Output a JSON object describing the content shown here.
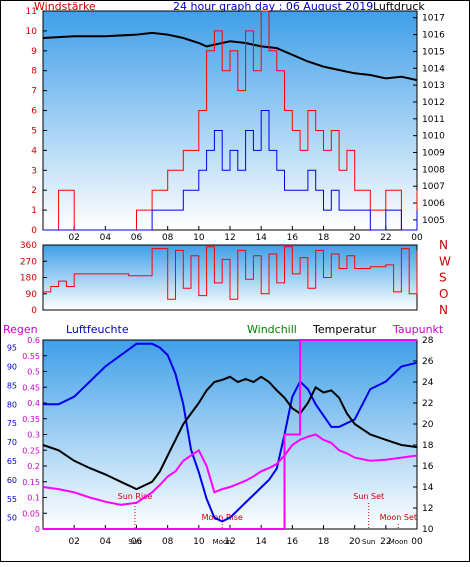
{
  "header": {
    "title": "24 hour graph day : 06 August 2019",
    "left_label": "Windstärke",
    "right_label": "Luftdruck"
  },
  "colors": {
    "red": "#ff0000",
    "blue": "#0000ee",
    "black": "#000000",
    "magenta": "#ff00ff",
    "green": "#008000",
    "panel_top": "#3f9fe8",
    "panel_bottom": "#ffffff",
    "label_red": "#cc0000",
    "label_blue": "#0000cc"
  },
  "chart_data": [
    {
      "type": "line",
      "name": "wind-pressure",
      "x_ticks": [
        "02",
        "04",
        "06",
        "08",
        "10",
        "12",
        "14",
        "16",
        "18",
        "20",
        "22",
        "00"
      ],
      "y_left": {
        "label": "Windstärke",
        "range": [
          0,
          11
        ],
        "ticks": [
          "0",
          "1",
          "2",
          "3",
          "4",
          "5",
          "6",
          "7",
          "8",
          "9",
          "10",
          "11"
        ]
      },
      "y_right": {
        "label": "Luftdruck",
        "range": [
          1004.4,
          1017.4
        ],
        "ticks": [
          "1005",
          "1006",
          "1007",
          "1008",
          "1009",
          "1010",
          "1011",
          "1012",
          "1013",
          "1014",
          "1015",
          "1016",
          "1017"
        ]
      },
      "series": [
        {
          "role": "pressure",
          "color": "#000000",
          "x": [
            0,
            2,
            4,
            6,
            7,
            8,
            9,
            10,
            10.5,
            11,
            12,
            13,
            14,
            15,
            16,
            17,
            18,
            19,
            20,
            21,
            22,
            23,
            24
          ],
          "y": [
            1015.8,
            1015.9,
            1015.9,
            1016.0,
            1016.1,
            1016.0,
            1015.8,
            1015.5,
            1015.3,
            1015.4,
            1015.6,
            1015.5,
            1015.3,
            1015.2,
            1014.8,
            1014.4,
            1014.1,
            1013.9,
            1013.7,
            1013.6,
            1013.4,
            1013.5,
            1013.3
          ]
        },
        {
          "role": "gust",
          "color": "#ff0000",
          "x": [
            0,
            1,
            2,
            3,
            4,
            5,
            6,
            7,
            8,
            9,
            10,
            10.5,
            11,
            11.5,
            12,
            12.5,
            13,
            13.5,
            14,
            14.5,
            15,
            15.5,
            16,
            16.5,
            17,
            17.5,
            18,
            18.5,
            19,
            19.5,
            20,
            21,
            22,
            23,
            24
          ],
          "y": [
            0,
            2,
            0,
            0,
            0,
            0,
            1,
            2,
            3,
            4,
            6,
            9,
            10,
            8,
            9,
            7,
            10,
            8,
            11,
            9,
            8,
            6,
            5,
            4,
            6,
            5,
            4,
            5,
            3,
            4,
            2,
            1,
            2,
            0,
            2
          ]
        },
        {
          "role": "wind",
          "color": "#0000ee",
          "x": [
            0,
            1,
            2,
            3,
            4,
            5,
            6,
            7,
            8,
            9,
            10,
            10.5,
            11,
            11.5,
            12,
            12.5,
            13,
            13.5,
            14,
            14.5,
            15,
            15.5,
            16,
            16.5,
            17,
            17.5,
            18,
            18.5,
            19,
            19.5,
            20,
            21,
            22,
            23,
            24
          ],
          "y": [
            0,
            0,
            0,
            0,
            0,
            0,
            0,
            1,
            1,
            2,
            3,
            4,
            5,
            3,
            4,
            3,
            5,
            4,
            6,
            4,
            3,
            2,
            2,
            2,
            3,
            2,
            1,
            2,
            1,
            1,
            1,
            0,
            1,
            0,
            1
          ]
        }
      ]
    },
    {
      "type": "line",
      "name": "wind-direction",
      "y_left": {
        "range": [
          0,
          360
        ],
        "ticks": [
          "0",
          "90",
          "180",
          "270",
          "360"
        ]
      },
      "y_right": {
        "ticks": [
          "N",
          "W",
          "S",
          "O",
          "N"
        ]
      },
      "series": [
        {
          "role": "direction",
          "color": "#ff0000",
          "x": [
            0,
            0.5,
            1,
            1.5,
            2,
            3,
            4,
            5,
            5.5,
            6,
            7,
            8,
            8.5,
            9,
            9.5,
            10,
            10.5,
            11,
            11.5,
            12,
            12.5,
            13,
            13.5,
            14,
            14.5,
            15,
            15.5,
            16,
            16.5,
            17,
            17.5,
            18,
            18.5,
            19,
            19.5,
            20,
            21,
            22,
            22.5,
            23,
            23.5,
            24
          ],
          "y": [
            100,
            130,
            160,
            130,
            200,
            200,
            200,
            200,
            190,
            190,
            340,
            60,
            330,
            120,
            300,
            80,
            350,
            150,
            280,
            60,
            330,
            170,
            300,
            90,
            310,
            150,
            350,
            200,
            290,
            120,
            330,
            180,
            310,
            230,
            300,
            230,
            240,
            250,
            100,
            340,
            90,
            330
          ]
        }
      ]
    },
    {
      "type": "line",
      "name": "humidity-temperature",
      "y_left_outer": {
        "label": "Regen",
        "range": [
          0,
          0.6
        ],
        "ticks": [
          "0",
          "0.05",
          "0.1",
          "0.15",
          "0.2",
          "0.25",
          "0.3",
          "0.35",
          "0.4",
          "0.45",
          "0.5",
          "0.55",
          "0.6"
        ]
      },
      "y_left_inner": {
        "label": "Luftfeuchte",
        "range": [
          47,
          97
        ],
        "ticks": [
          "50",
          "55",
          "60",
          "65",
          "70",
          "75",
          "80",
          "85",
          "90",
          "95"
        ]
      },
      "y_right": {
        "label": "Temperatur",
        "range": [
          10,
          28
        ],
        "ticks": [
          "10",
          "12",
          "14",
          "16",
          "18",
          "20",
          "22",
          "24",
          "26",
          "28"
        ]
      },
      "x_ticks": [
        "02",
        "04",
        "06",
        "08",
        "10",
        "12",
        "14",
        "16",
        "18",
        "20",
        "22",
        "00"
      ],
      "labels": {
        "windchill": "Windchill",
        "temperatur": "Temperatur",
        "taupunkt": "Taupunkt",
        "sun_rise": "Sun Rise",
        "sun_set": "Sun Set",
        "moon_rise": "Moon Rise",
        "moon_set": "Moon Set"
      },
      "series": [
        {
          "role": "humidity",
          "color": "#0000ee",
          "x": [
            0,
            1,
            2,
            3,
            4,
            5,
            6,
            7,
            7.5,
            8,
            8.5,
            9,
            9.5,
            10,
            10.5,
            11,
            11.5,
            12,
            12.5,
            13,
            13.5,
            14,
            14.5,
            15,
            15.5,
            16,
            16.5,
            17,
            17.5,
            18,
            18.5,
            19,
            19.5,
            20,
            21,
            22,
            23,
            24
          ],
          "y": [
            80,
            80,
            82,
            86,
            90,
            93,
            96,
            96,
            95,
            93,
            88,
            80,
            68,
            62,
            55,
            50,
            49,
            50,
            52,
            54,
            56,
            58,
            60,
            63,
            72,
            82,
            86,
            84,
            80,
            77,
            74,
            74,
            75,
            76,
            84,
            86,
            90,
            91
          ]
        },
        {
          "role": "temperature",
          "color": "#000000",
          "x": [
            0,
            1,
            2,
            3,
            4,
            5,
            6,
            7,
            7.5,
            8,
            8.5,
            9,
            9.5,
            10,
            10.5,
            11,
            11.5,
            12,
            12.5,
            13,
            13.5,
            14,
            14.5,
            15,
            15.5,
            16,
            16.5,
            17,
            17.5,
            18,
            18.5,
            19,
            19.5,
            20,
            21,
            22,
            23,
            24
          ],
          "y": [
            18.0,
            17.5,
            16.5,
            15.8,
            15.2,
            14.5,
            13.8,
            14.5,
            15.5,
            17.0,
            18.5,
            20.0,
            21.0,
            22.0,
            23.2,
            24.0,
            24.2,
            24.5,
            24.0,
            24.3,
            24.0,
            24.5,
            24.0,
            23.2,
            22.5,
            21.5,
            21.0,
            22.0,
            23.5,
            23.0,
            23.2,
            22.5,
            21.0,
            20.0,
            19.0,
            18.5,
            18.0,
            17.8
          ]
        },
        {
          "role": "dewpoint",
          "color": "#ff00ff",
          "x": [
            0,
            1,
            2,
            3,
            4,
            5,
            6,
            7,
            7.5,
            8,
            8.5,
            9,
            9.5,
            10,
            10.5,
            11,
            11.5,
            12,
            12.5,
            13,
            13.5,
            14,
            14.5,
            15,
            15.5,
            16,
            16.5,
            17,
            17.5,
            18,
            18.5,
            19,
            19.5,
            20,
            21,
            22,
            23,
            24
          ],
          "y": [
            14.0,
            13.8,
            13.5,
            13.0,
            12.6,
            12.3,
            12.5,
            13.5,
            14.2,
            15.0,
            15.5,
            16.5,
            17.0,
            17.5,
            16.0,
            13.5,
            13.8,
            14.0,
            14.3,
            14.6,
            15.0,
            15.5,
            15.8,
            16.2,
            17.0,
            18.0,
            18.5,
            18.8,
            19.0,
            18.5,
            18.2,
            17.5,
            17.2,
            16.8,
            16.5,
            16.6,
            16.8,
            17.0
          ]
        },
        {
          "role": "rain",
          "color": "#ff00ff",
          "x": [
            0,
            15.5,
            15.5,
            16.5,
            16.5,
            24
          ],
          "y": [
            0,
            0,
            0.3,
            0.3,
            0.6,
            0.6
          ]
        }
      ],
      "sun_rise_x": 5.9,
      "sun_set_x": 20.9,
      "moon_rise_x": 11.5,
      "moon_set_x": 22.8
    }
  ]
}
